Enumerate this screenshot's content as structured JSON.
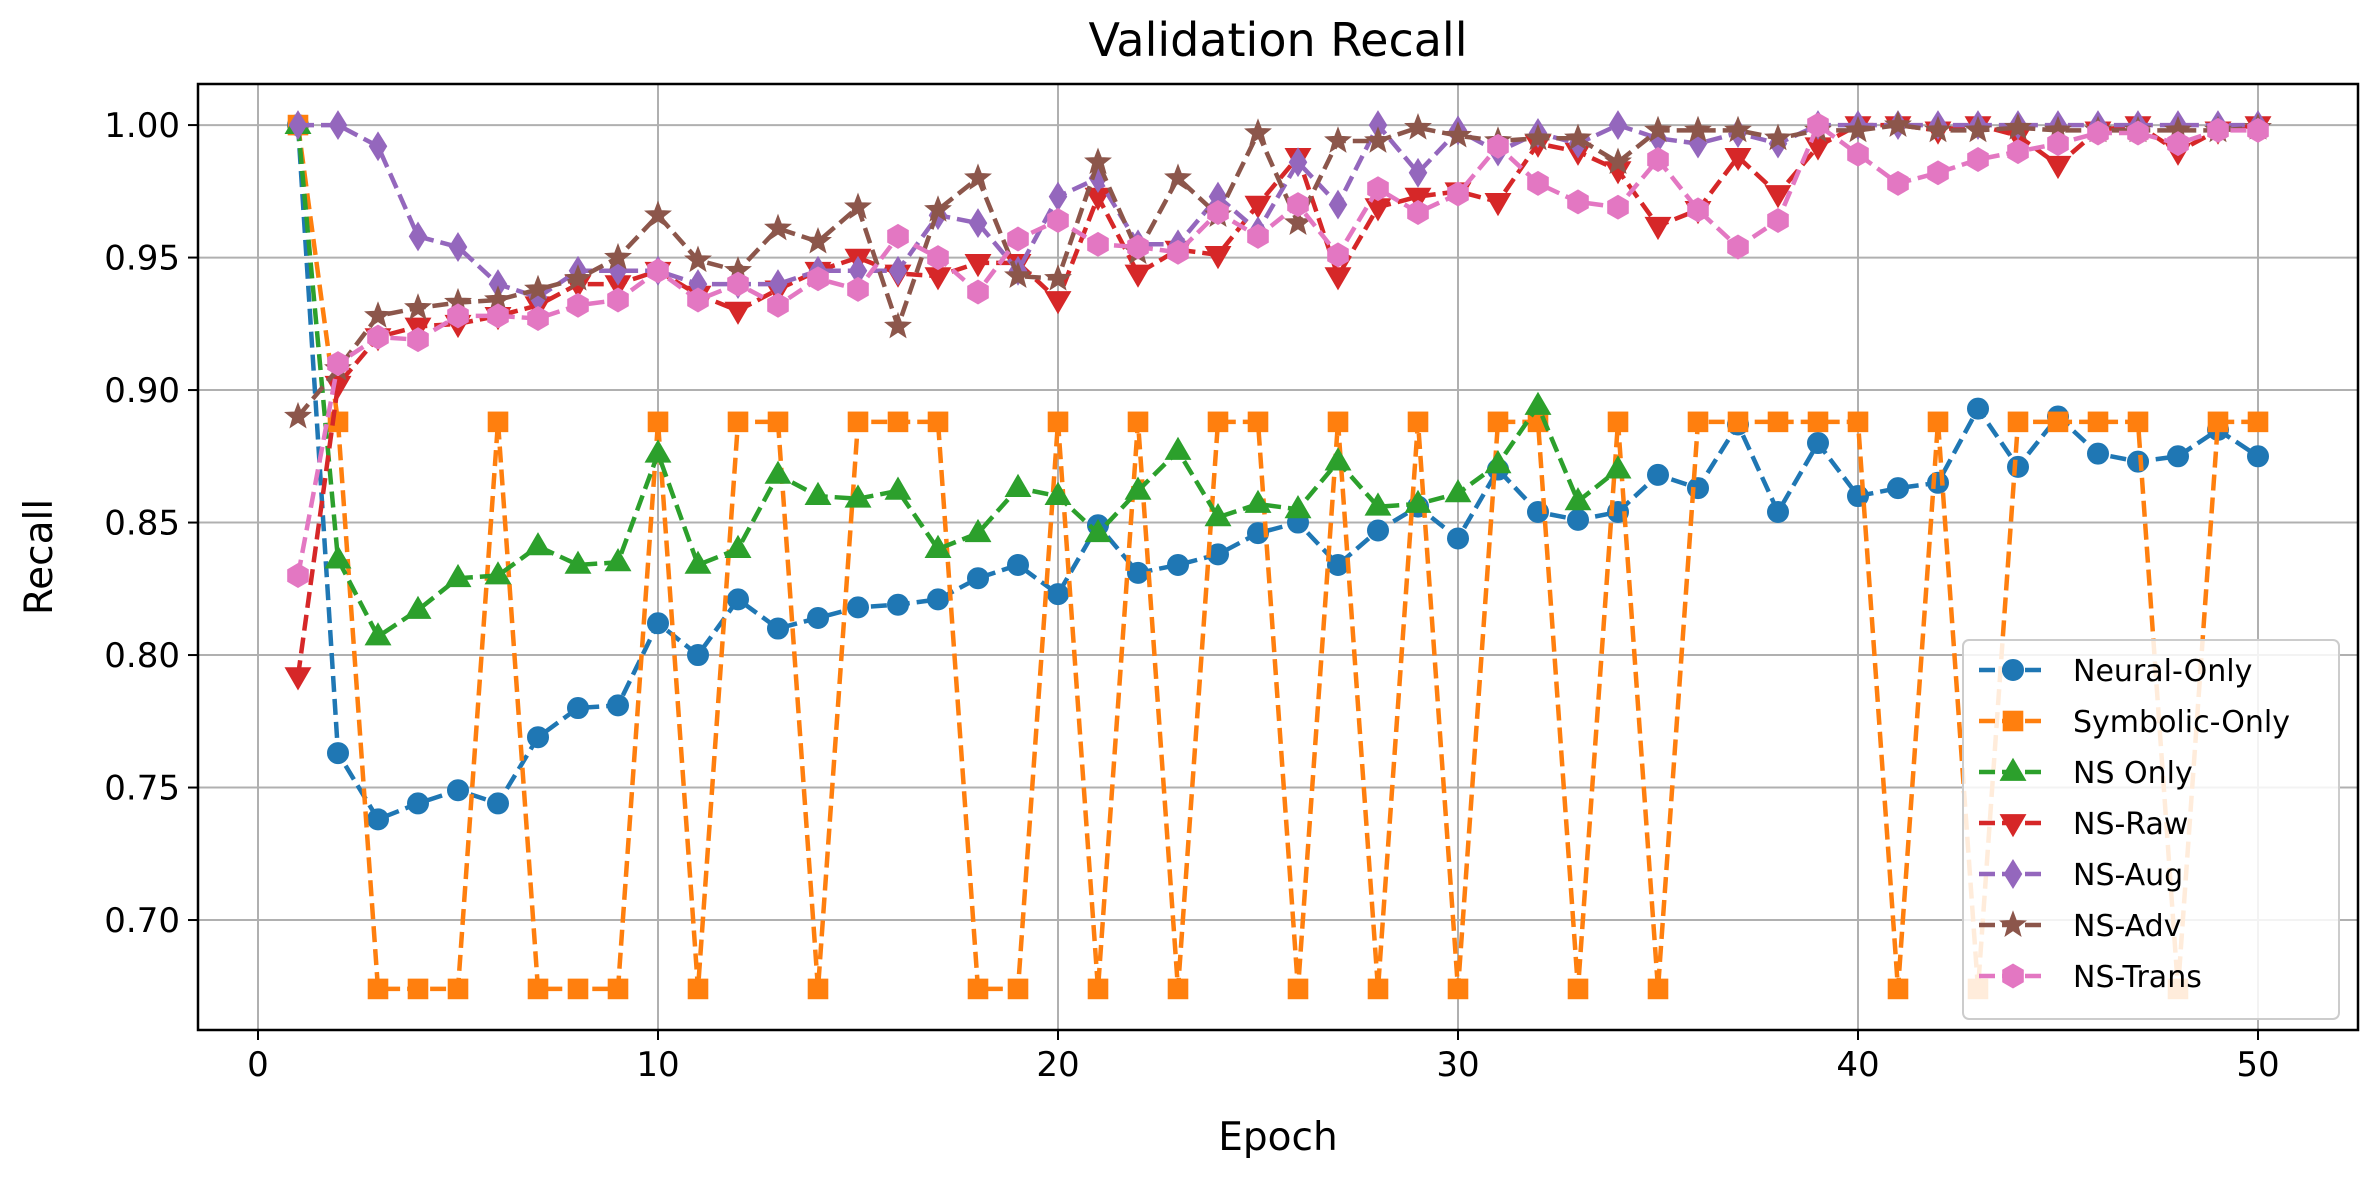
{
  "chart_data": {
    "type": "line",
    "title": "Validation Recall",
    "xlabel": "Epoch",
    "ylabel": "Recall",
    "xlim": [
      -1.5,
      52.5
    ],
    "ylim": [
      0.6585,
      1.0155
    ],
    "xticks": [
      0,
      10,
      20,
      30,
      40,
      50
    ],
    "xtick_labels": [
      "0",
      "10",
      "20",
      "30",
      "40",
      "50"
    ],
    "yticks": [
      0.7,
      0.75,
      0.8,
      0.85,
      0.9,
      0.95,
      1.0
    ],
    "ytick_labels": [
      "0.70",
      "0.75",
      "0.80",
      "0.85",
      "0.90",
      "0.95",
      "1.00"
    ],
    "grid": true,
    "legend_position": "lower-right",
    "x": [
      1,
      2,
      3,
      4,
      5,
      6,
      7,
      8,
      9,
      10,
      11,
      12,
      13,
      14,
      15,
      16,
      17,
      18,
      19,
      20,
      21,
      22,
      23,
      24,
      25,
      26,
      27,
      28,
      29,
      30,
      31,
      32,
      33,
      34,
      35,
      36,
      37,
      38,
      39,
      40,
      41,
      42,
      43,
      44,
      45,
      46,
      47,
      48,
      49,
      50
    ],
    "series": [
      {
        "name": "Neural-Only",
        "color": "#1f77b4",
        "marker": "circle",
        "values": [
          1.0,
          0.763,
          0.738,
          0.744,
          0.749,
          0.744,
          0.769,
          0.78,
          0.781,
          0.812,
          0.8,
          0.821,
          0.81,
          0.814,
          0.818,
          0.819,
          0.821,
          0.829,
          0.834,
          0.823,
          0.849,
          0.831,
          0.834,
          0.838,
          0.846,
          0.85,
          0.834,
          0.847,
          0.856,
          0.844,
          0.87,
          0.854,
          0.851,
          0.854,
          0.868,
          0.863,
          0.887,
          0.854,
          0.88,
          0.86,
          0.863,
          0.865,
          0.893,
          0.871,
          0.89,
          0.876,
          0.873,
          0.875,
          0.885,
          0.875
        ]
      },
      {
        "name": "Symbolic-Only",
        "color": "#ff7f0e",
        "marker": "square",
        "values": [
          1.0,
          0.888,
          0.674,
          0.674,
          0.674,
          0.888,
          0.674,
          0.674,
          0.674,
          0.888,
          0.674,
          0.888,
          0.888,
          0.674,
          0.888,
          0.888,
          0.888,
          0.674,
          0.674,
          0.888,
          0.674,
          0.888,
          0.674,
          0.888,
          0.888,
          0.674,
          0.888,
          0.674,
          0.888,
          0.674,
          0.888,
          0.888,
          0.674,
          0.888,
          0.674,
          0.888,
          0.888,
          0.888,
          0.888,
          0.888,
          0.674,
          0.888,
          0.674,
          0.888,
          0.888,
          0.888,
          0.888,
          0.674,
          0.888,
          0.888
        ]
      },
      {
        "name": "NS Only",
        "color": "#2ca02c",
        "marker": "triangle-up",
        "values": [
          1.0,
          0.836,
          0.807,
          0.817,
          0.829,
          0.83,
          0.841,
          0.834,
          0.835,
          0.876,
          0.834,
          0.84,
          0.868,
          0.86,
          0.859,
          0.862,
          0.84,
          0.846,
          0.863,
          0.86,
          0.846,
          0.862,
          0.877,
          0.852,
          0.857,
          0.855,
          0.873,
          0.856,
          0.857,
          0.861,
          0.872,
          0.894,
          0.858,
          0.87,
          null,
          null,
          null,
          null,
          null,
          null,
          null,
          null,
          null,
          null,
          null,
          null,
          null,
          null,
          null,
          null
        ]
      },
      {
        "name": "NS-Raw",
        "color": "#d62728",
        "marker": "triangle-down",
        "values": [
          0.792,
          0.902,
          0.92,
          0.924,
          0.925,
          0.928,
          0.932,
          0.94,
          0.94,
          0.945,
          0.936,
          0.93,
          0.938,
          0.945,
          0.95,
          0.944,
          0.943,
          0.948,
          0.948,
          0.934,
          0.973,
          0.944,
          0.953,
          0.951,
          0.97,
          0.988,
          0.943,
          0.969,
          0.973,
          0.975,
          0.971,
          0.993,
          0.99,
          0.983,
          0.962,
          0.968,
          0.988,
          0.974,
          0.992,
          1.0,
          1.0,
          0.998,
          1.0,
          0.996,
          0.985,
          0.998,
          1.0,
          0.99,
          0.998,
          1.0
        ]
      },
      {
        "name": "NS-Aug",
        "color": "#9467bd",
        "marker": "diamond",
        "values": [
          1.0,
          1.0,
          0.992,
          0.958,
          0.954,
          0.94,
          0.935,
          0.945,
          0.945,
          0.945,
          0.94,
          0.94,
          0.94,
          0.945,
          0.945,
          0.945,
          0.966,
          0.963,
          0.945,
          0.973,
          0.98,
          0.955,
          0.955,
          0.973,
          0.96,
          0.986,
          0.97,
          1.0,
          0.982,
          0.998,
          0.99,
          0.997,
          0.993,
          1.0,
          0.995,
          0.993,
          0.997,
          0.993,
          1.0,
          1.0,
          1.0,
          1.0,
          1.0,
          1.0,
          1.0,
          1.0,
          1.0,
          1.0,
          1.0,
          1.0
        ]
      },
      {
        "name": "NS-Adv",
        "color": "#8c564b",
        "marker": "star",
        "values": [
          0.89,
          0.908,
          0.928,
          0.931,
          0.933,
          0.934,
          0.938,
          0.942,
          0.95,
          0.966,
          0.949,
          0.945,
          0.961,
          0.956,
          0.969,
          0.924,
          0.968,
          0.98,
          0.943,
          0.942,
          0.986,
          0.952,
          0.98,
          0.966,
          0.997,
          0.963,
          0.994,
          0.994,
          0.999,
          0.996,
          0.994,
          0.995,
          0.995,
          0.986,
          0.998,
          0.998,
          0.998,
          0.995,
          0.998,
          0.998,
          1.0,
          0.998,
          0.998,
          0.999,
          0.998,
          0.998,
          0.998,
          0.998,
          0.998,
          0.999
        ]
      },
      {
        "name": "NS-Trans",
        "color": "#e377c2",
        "marker": "hexagon",
        "values": [
          0.83,
          0.91,
          0.92,
          0.919,
          0.928,
          0.928,
          0.927,
          0.932,
          0.934,
          0.945,
          0.934,
          0.94,
          0.932,
          0.942,
          0.938,
          0.958,
          0.95,
          0.937,
          0.957,
          0.964,
          0.955,
          0.954,
          0.952,
          0.967,
          0.958,
          0.97,
          0.951,
          0.976,
          0.967,
          0.974,
          0.992,
          0.978,
          0.971,
          0.969,
          0.987,
          0.968,
          0.954,
          0.964,
          1.0,
          0.989,
          0.978,
          0.982,
          0.987,
          0.99,
          0.993,
          0.997,
          0.997,
          0.993,
          0.998,
          0.998
        ]
      }
    ]
  }
}
